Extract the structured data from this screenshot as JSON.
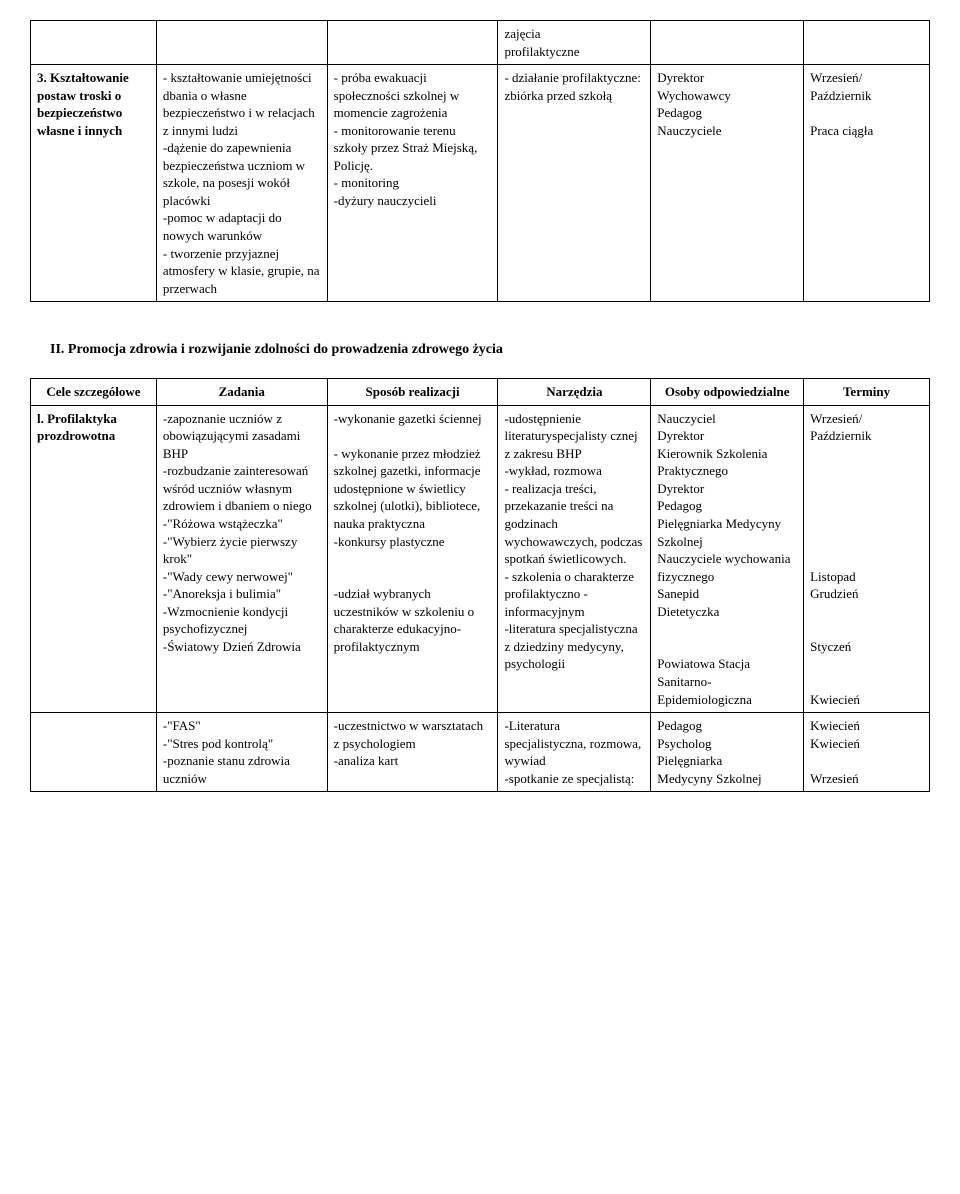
{
  "table1": {
    "row0": {
      "c4": "zajęcia\nprofilaktyczne"
    },
    "row1": {
      "c1": "3. Kształtowanie postaw troski o bezpieczeństwo własne i innych",
      "c2": "- kształtowanie umiejętności dbania o własne bezpieczeństwo i w relacjach z innymi ludzi\n-dążenie do zapewnienia bezpieczeństwa uczniom w szkole, na posesji wokół placówki\n-pomoc w adaptacji do nowych warunków\n- tworzenie przyjaznej atmosfery w klasie, grupie, na przerwach",
      "c3": "- próba ewakuacji społeczności szkolnej w momencie zagrożenia\n- monitorowanie terenu szkoły przez Straż Miejską, Policję.\n- monitoring\n-dyżury nauczycieli",
      "c4": "- działanie profilaktyczne: zbiórka przed szkołą",
      "c5": "Dyrektor\nWychowawcy\nPedagog\nNauczyciele",
      "c6": "Wrzesień/\nPaździernik\n\nPraca ciągła"
    }
  },
  "section2_heading": "II. Promocja zdrowia i rozwijanie zdolności do prowadzenia zdrowego życia",
  "table2": {
    "headers": {
      "c1": "Cele szczegółowe",
      "c2": "Zadania",
      "c3": "Sposób realizacji",
      "c4": "Narzędzia",
      "c5": "Osoby odpowiedzialne",
      "c6": "Terminy"
    },
    "row1": {
      "c1": "l. Profilaktyka prozdrowotna",
      "c2": "-zapoznanie uczniów z obowiązującymi zasadami BHP\n-rozbudzanie zainteresowań wśród uczniów własnym zdrowiem i dbaniem o niego\n-\"Różowa wstążeczka\"\n-\"Wybierz życie pierwszy krok\"\n-\"Wady cewy nerwowej\"\n-\"Anoreksja i bulimia\"\n-Wzmocnienie kondycji psychofizycznej\n-Światowy Dzień Zdrowia",
      "c3": "-wykonanie gazetki ściennej\n\n- wykonanie przez młodzież szkolnej gazetki, informacje udostępnione w świetlicy szkolnej (ulotki), bibliotece, nauka praktyczna\n-konkursy plastyczne\n\n\n-udział wybranych uczestników w szkoleniu o charakterze edukacyjno-profilaktycznym",
      "c4": "-udostępnienie literaturyspecjalisty cznej z zakresu BHP\n-wykład, rozmowa\n- realizacja treści, przekazanie treści na godzinach wychowawczych, podczas spotkań świetlicowych.\n - szkolenia o charakterze profilaktyczno - informacyjnym\n-literatura specjalistyczna z dziedziny medycyny, psychologii",
      "c5": "Nauczyciel\nDyrektor\nKierownik Szkolenia Praktycznego\nDyrektor\nPedagog\nPielęgniarka Medycyny Szkolnej\nNauczyciele wychowania fizycznego\nSanepid\nDietetyczka\n\n\nPowiatowa Stacja Sanitarno-Epidemiologiczna",
      "c6": "Wrzesień/\nPaździernik\n\n\n\n\n\n\n\nListopad\nGrudzień\n\n\nStyczeń\n\n\nKwiecień"
    },
    "row2": {
      "c2": "-\"FAS\"\n-\"Stres pod kontrolą\"\n-poznanie stanu zdrowia uczniów",
      "c3": "-uczestnictwo w warsztatach z psychologiem\n-analiza kart",
      "c4": "-Literatura specjalistyczna, rozmowa, wywiad\n-spotkanie ze specjalistą:",
      "c5": "Pedagog\nPsycholog\nPielęgniarka\nMedycyny Szkolnej",
      "c6": "Kwiecień\nKwiecień\n\nWrzesień"
    }
  }
}
